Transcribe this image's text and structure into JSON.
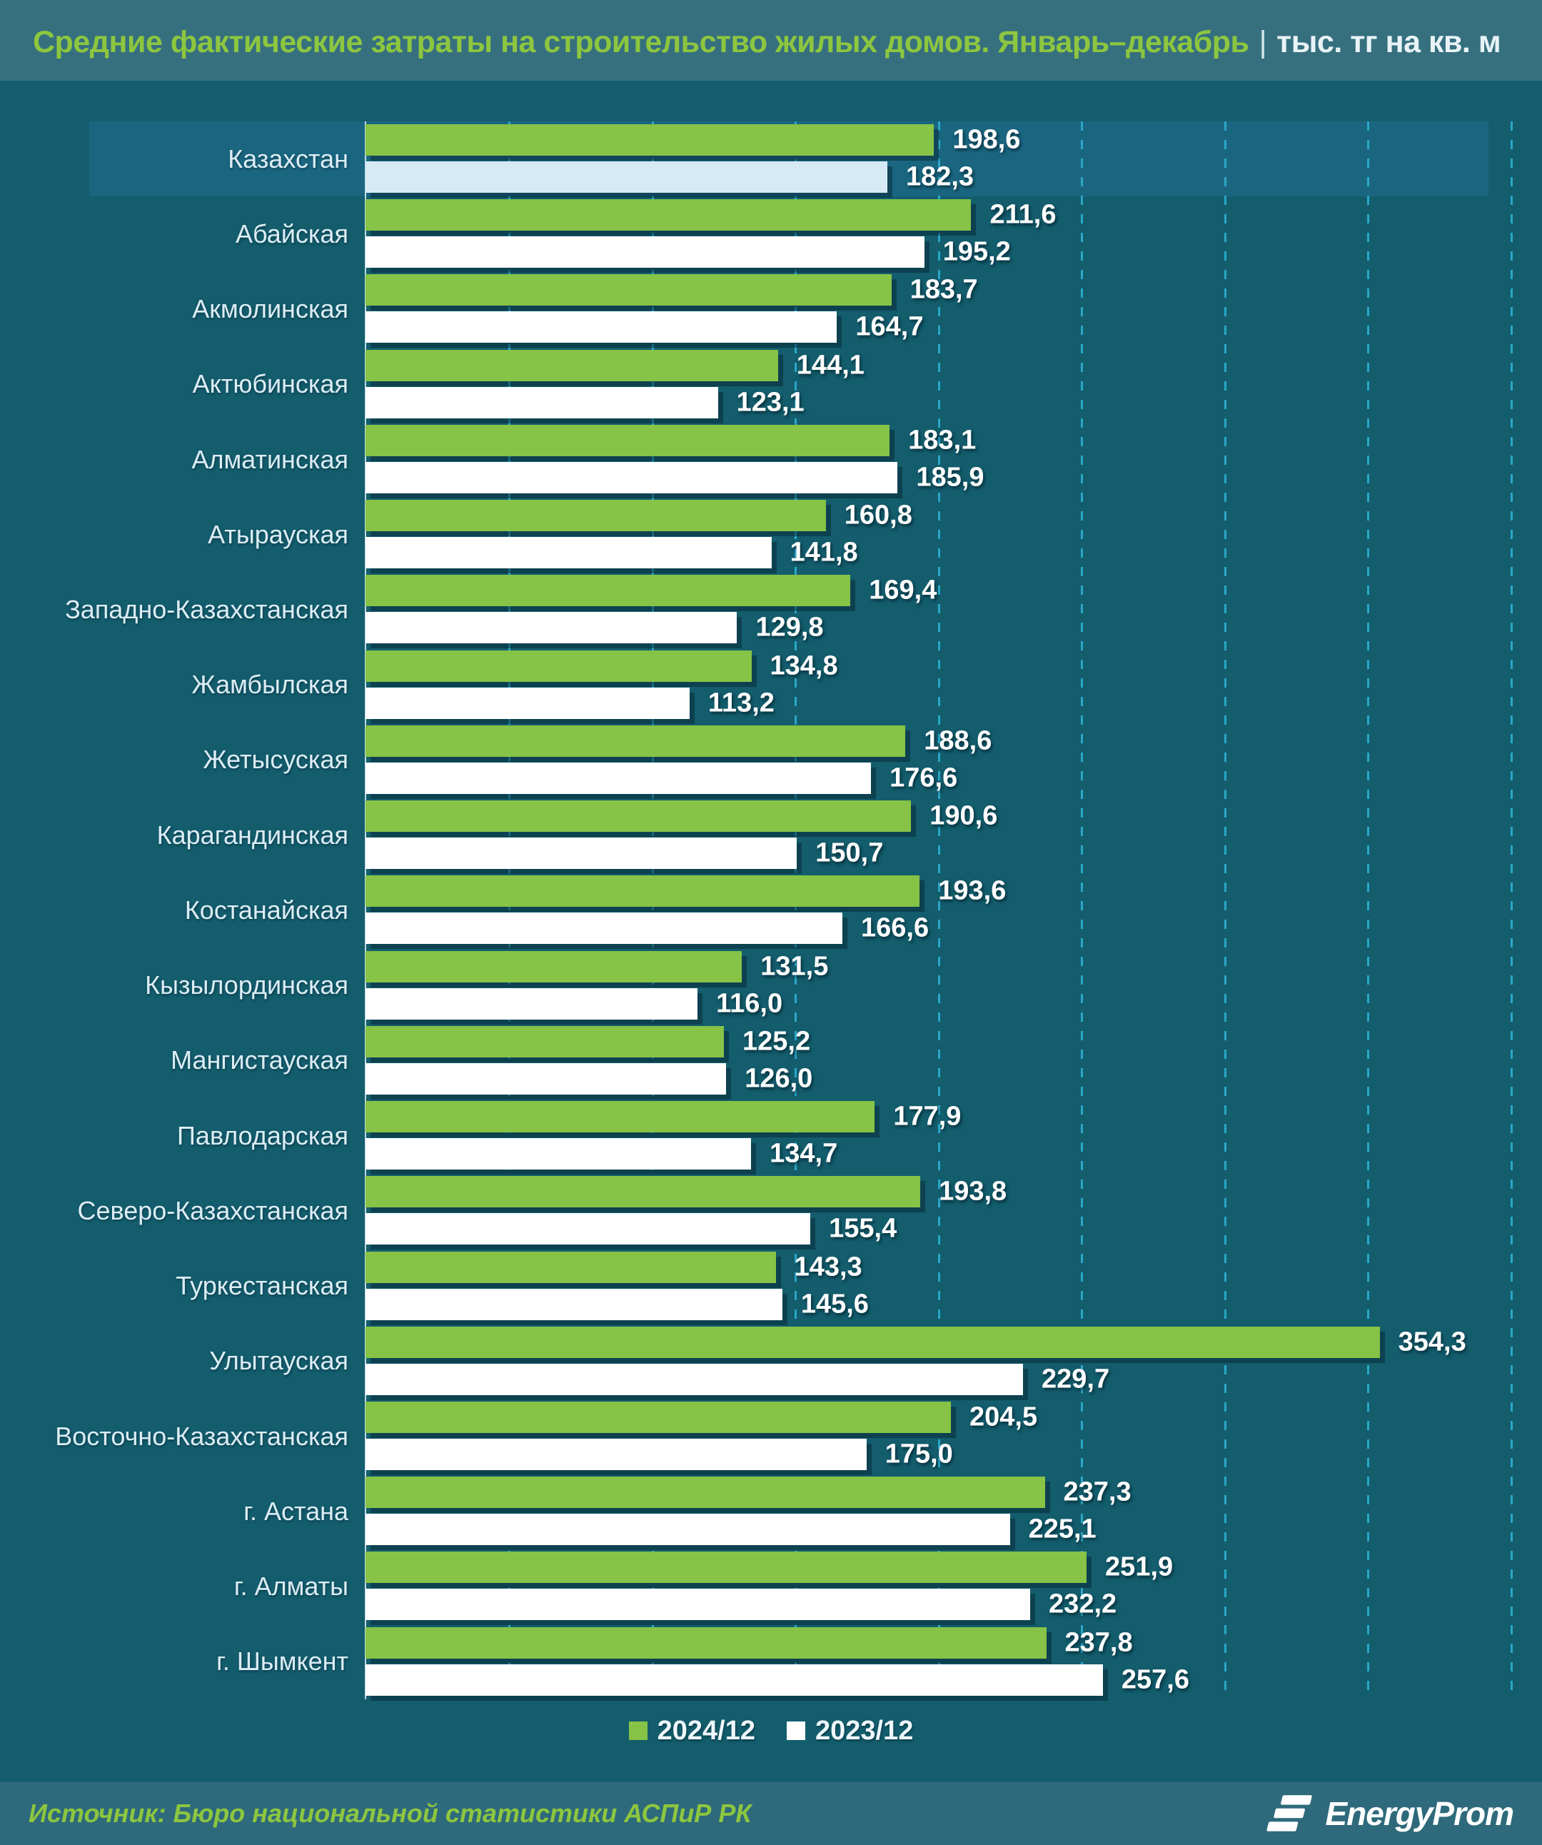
{
  "header": {
    "title_green": "Средние фактические затраты на строительство жилых домов. Январь–декабрь",
    "title_separator": "|",
    "title_white": "тыс. тг на кв. м"
  },
  "chart_data": {
    "type": "bar",
    "orientation": "horizontal",
    "title": "Средние фактические затраты на строительство жилых домов. Январь–декабрь",
    "unit": "тыс. тг на кв. м",
    "categories": [
      "Казахстан",
      "Абайская",
      "Акмолинская",
      "Актюбинская",
      "Алматинская",
      "Атырауская",
      "Западно-Казахстанская",
      "Жамбылская",
      "Жетысуская",
      "Карагандинская",
      "Костанайская",
      "Кызылординская",
      "Мангистауская",
      "Павлодарская",
      "Северо-Казахстанская",
      "Туркестанская",
      "Улытауская",
      "Восточно-Казахстанская",
      "г. Астана",
      "г. Алматы",
      "г. Шымкент"
    ],
    "series": [
      {
        "name": "2024/12",
        "color": "#86c346",
        "values": [
          198.6,
          211.6,
          183.7,
          144.1,
          183.1,
          160.8,
          169.4,
          134.8,
          188.6,
          190.6,
          193.6,
          131.5,
          125.2,
          177.9,
          193.8,
          143.3,
          354.3,
          204.5,
          237.3,
          251.9,
          237.8
        ]
      },
      {
        "name": "2023/12",
        "color": "#ffffff",
        "values": [
          182.3,
          195.2,
          164.7,
          123.1,
          185.9,
          141.8,
          129.8,
          113.2,
          176.6,
          150.7,
          166.6,
          116.0,
          126.0,
          134.7,
          155.4,
          145.6,
          229.7,
          175.0,
          225.1,
          232.2,
          257.6
        ]
      }
    ],
    "highlighted_category": "Казахстан",
    "value_label_format": "comma-decimal-1",
    "axis": {
      "min": 0,
      "max": 411,
      "gridline_step": 50,
      "gridlines": [
        50,
        100,
        150,
        200,
        250,
        300,
        350,
        400
      ],
      "grid_style": "dashed-vertical"
    },
    "legend": {
      "position": "bottom-center",
      "items": [
        "2024/12",
        "2023/12"
      ]
    }
  },
  "footer": {
    "source": "Источник: Бюро национальной статистики АСПиР РК",
    "brand": "EnergyProm"
  },
  "colors": {
    "background": "#135d6d",
    "header_background": "#36707f",
    "footer_background": "#2e6a7b",
    "row_highlight": "#1a6680",
    "bar_2024": "#86c346",
    "bar_2023": "#ffffff",
    "bar_2023_kazakhstan": "#d6eaf6",
    "gridline": "#2ba7c7",
    "axis_line": "#dff0f7",
    "title_green": "#8dc63f",
    "title_white": "#e9f3f7",
    "label_text": "#dcedf5",
    "value_text": "#ffffff"
  }
}
